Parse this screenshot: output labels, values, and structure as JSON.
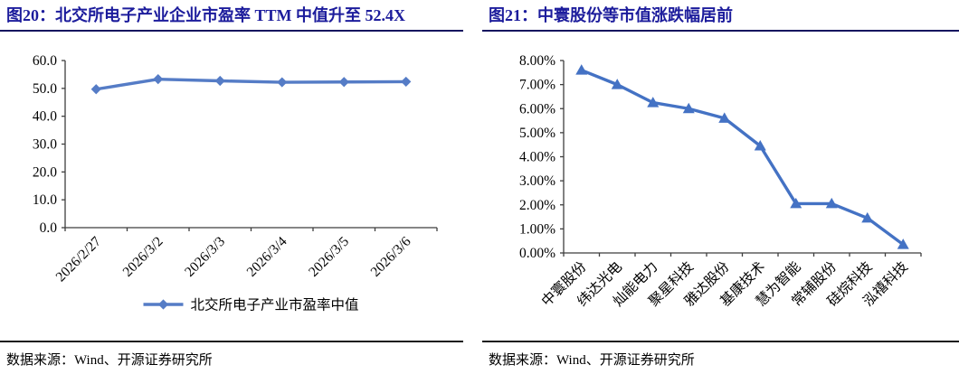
{
  "colors": {
    "accent_line": "#4472C4",
    "left_line": "#557CC6",
    "title_text": "#1c1c9c",
    "title_rule": "#15155f",
    "source_rule": "#1a1a1a",
    "axis": "#3f3f3f",
    "text": "#000000"
  },
  "panels": [
    {
      "title": "图20：北交所电子产业企业市盈率 TTM 中值升至 52.4X",
      "source": "数据来源：Wind、开源证券研究所"
    },
    {
      "title": "图21：中寰股份等市值涨跌幅居前",
      "source": "数据来源：Wind、开源证券研究所"
    }
  ],
  "chart_data": [
    {
      "type": "line",
      "title": "北交所电子产业企业市盈率TTM中值",
      "categories": [
        "2026/2/27",
        "2026/3/2",
        "2026/3/3",
        "2026/3/4",
        "2026/3/5",
        "2026/3/6"
      ],
      "series": [
        {
          "name": "北交所电子产业市盈率中值",
          "values": [
            49.7,
            53.3,
            52.7,
            52.2,
            52.3,
            52.4
          ]
        }
      ],
      "legend": "北交所电子产业市盈率中值",
      "legend_position": "bottom",
      "marker": "diamond",
      "grid": false,
      "xlabel": "",
      "ylabel": "",
      "ylim": [
        0,
        60
      ],
      "ystep": 10,
      "yticks": [
        "0.0",
        "10.0",
        "20.0",
        "30.0",
        "40.0",
        "50.0",
        "60.0"
      ],
      "line_color": "#557CC6"
    },
    {
      "type": "line",
      "title": "中寰股份等市值涨跌幅居前",
      "categories": [
        "中寰股份",
        "纬达光电",
        "灿能电力",
        "聚星科技",
        "雅达股份",
        "基康技术",
        "慧为智能",
        "常辅股份",
        "硅烷科技",
        "泓禧科技"
      ],
      "series": [
        {
          "name": "市值涨跌幅",
          "values": [
            7.6,
            7.0,
            6.25,
            6.0,
            5.6,
            4.45,
            2.05,
            2.05,
            1.45,
            0.35
          ]
        }
      ],
      "legend": null,
      "marker": "triangle",
      "grid": false,
      "xlabel": "",
      "ylabel": "",
      "ylim": [
        0,
        8
      ],
      "ystep": 1,
      "yticks": [
        "0.00%",
        "1.00%",
        "2.00%",
        "3.00%",
        "4.00%",
        "5.00%",
        "6.00%",
        "7.00%",
        "8.00%"
      ],
      "unit": "percent",
      "line_color": "#4472C4"
    }
  ]
}
